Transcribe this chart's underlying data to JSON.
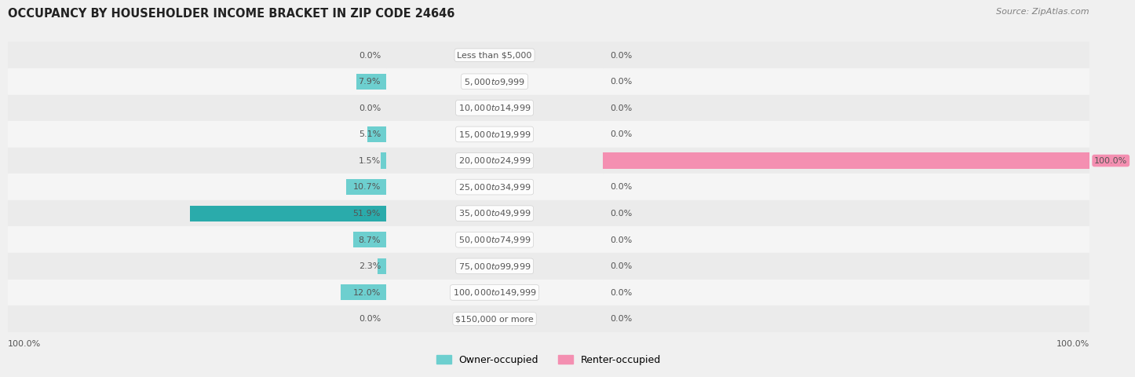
{
  "title": "OCCUPANCY BY HOUSEHOLDER INCOME BRACKET IN ZIP CODE 24646",
  "source": "Source: ZipAtlas.com",
  "categories": [
    "Less than $5,000",
    "$5,000 to $9,999",
    "$10,000 to $14,999",
    "$15,000 to $19,999",
    "$20,000 to $24,999",
    "$25,000 to $34,999",
    "$35,000 to $49,999",
    "$50,000 to $74,999",
    "$75,000 to $99,999",
    "$100,000 to $149,999",
    "$150,000 or more"
  ],
  "owner_values": [
    0.0,
    7.9,
    0.0,
    5.1,
    1.5,
    10.7,
    51.9,
    8.7,
    2.3,
    12.0,
    0.0
  ],
  "renter_values": [
    0.0,
    0.0,
    0.0,
    0.0,
    100.0,
    0.0,
    0.0,
    0.0,
    0.0,
    0.0,
    0.0
  ],
  "owner_color": "#6dcfcf",
  "owner_color_dark": "#2aabab",
  "renter_color": "#f48fb1",
  "bg_color": "#f0f0f0",
  "row_bg_even": "#ebebeb",
  "row_bg_odd": "#f5f5f5",
  "label_color": "#555555",
  "title_color": "#222222",
  "axis_max": 100.0,
  "bar_height": 0.6,
  "label_fontsize": 8.0,
  "title_fontsize": 10.5,
  "source_fontsize": 8.0,
  "legend_fontsize": 9.0
}
